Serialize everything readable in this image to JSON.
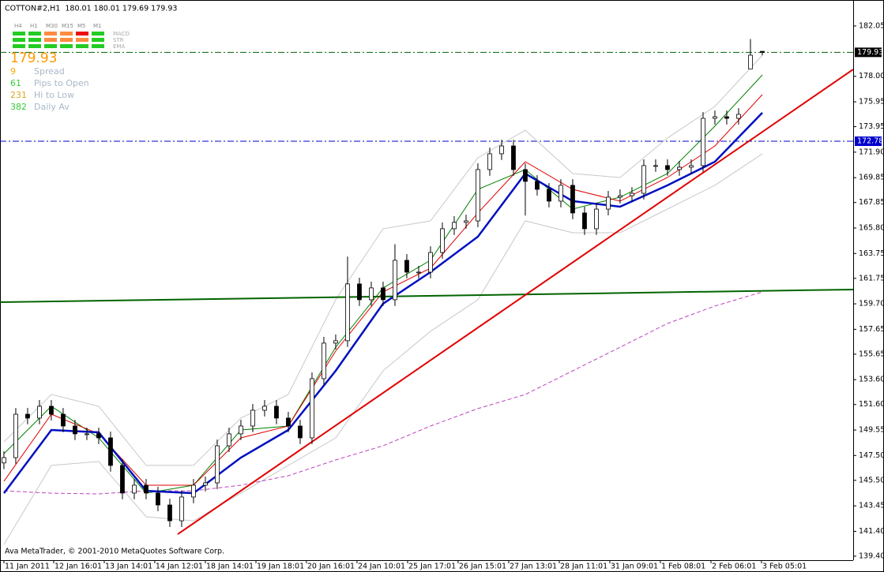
{
  "chart_data": {
    "type": "candlestick",
    "title": "COTTON#2,H1  180.01 180.01 179.69 179.93",
    "footer": "Ava MetaTrader, © 2001-2010 MetaQuotes Software Corp.",
    "open": [
      146.9,
      147.33,
      150.82,
      150.51,
      151.46,
      150.82,
      149.87,
      149.24,
      149.24,
      148.92,
      146.7,
      144.48,
      145.11,
      144.48,
      143.52,
      142.25,
      144.16,
      145.11,
      145.3,
      148.28,
      149.24,
      149.87,
      151.14,
      151.46,
      150.51,
      149.87,
      148.92,
      153.68,
      156.54,
      156.73,
      161.3,
      160.03,
      160.98,
      160.03,
      163.2,
      162.25,
      162.25,
      163.83,
      165.74,
      166.25,
      166.37,
      170.5,
      171.77,
      172.4,
      170.5,
      169.55,
      168.91,
      167.96,
      169.23,
      167.01,
      165.74,
      167.32,
      168.28,
      168.4,
      168.59,
      170.82,
      170.82,
      170.5,
      170.69,
      170.82,
      174.62,
      174.75,
      174.62,
      178.6,
      180.01
    ],
    "high": [
      147.83,
      151.32,
      151.32,
      151.96,
      151.96,
      151.32,
      150.37,
      149.74,
      149.74,
      149.42,
      147.2,
      145.61,
      145.61,
      144.98,
      144.02,
      144.66,
      145.61,
      145.8,
      148.78,
      149.74,
      150.37,
      151.64,
      151.96,
      151.96,
      151.01,
      150.37,
      154.18,
      157.04,
      157.23,
      163.5,
      161.8,
      161.48,
      161.48,
      164.5,
      163.7,
      162.75,
      164.33,
      166.24,
      166.75,
      166.87,
      171.0,
      172.27,
      172.9,
      172.9,
      171.0,
      170.05,
      169.41,
      169.73,
      169.73,
      167.51,
      167.82,
      168.78,
      168.9,
      169.09,
      171.32,
      171.32,
      171.32,
      171.19,
      171.32,
      175.12,
      175.25,
      175.25,
      175.44,
      181.0,
      180.01
    ],
    "low": [
      146.4,
      146.83,
      150.01,
      150.01,
      150.32,
      149.37,
      148.74,
      148.74,
      148.42,
      146.2,
      143.98,
      143.98,
      143.98,
      143.02,
      141.75,
      141.75,
      143.66,
      144.61,
      144.8,
      147.78,
      148.74,
      149.37,
      150.64,
      150.01,
      149.37,
      148.42,
      148.42,
      153.18,
      156.04,
      156.23,
      159.53,
      159.53,
      159.53,
      159.53,
      161.75,
      161.75,
      161.75,
      163.33,
      165.24,
      165.75,
      165.87,
      170.0,
      171.27,
      170.0,
      166.8,
      168.41,
      167.46,
      167.46,
      166.51,
      165.24,
      165.24,
      166.82,
      167.78,
      167.9,
      168.09,
      170.32,
      170.0,
      170.0,
      170.19,
      170.32,
      174.12,
      174.12,
      174.12,
      178.6,
      179.69
    ],
    "close": [
      147.33,
      150.82,
      150.51,
      151.46,
      150.82,
      149.87,
      149.24,
      149.24,
      148.92,
      146.7,
      144.48,
      145.11,
      144.48,
      143.52,
      142.25,
      144.16,
      145.11,
      145.3,
      148.28,
      149.24,
      149.87,
      151.14,
      151.46,
      150.51,
      149.87,
      148.92,
      153.68,
      156.54,
      156.73,
      161.3,
      160.03,
      160.98,
      160.03,
      163.2,
      162.25,
      162.25,
      163.83,
      165.74,
      166.25,
      166.37,
      170.5,
      171.77,
      172.4,
      170.5,
      169.55,
      168.91,
      167.96,
      169.23,
      167.01,
      165.74,
      167.32,
      168.28,
      168.4,
      168.59,
      170.82,
      170.82,
      170.5,
      170.69,
      170.82,
      174.62,
      174.75,
      174.62,
      174.94,
      179.7,
      179.93
    ],
    "up_color": "#ffffff",
    "down_color": "#000000",
    "candle_edge": "#000000",
    "indicator_x": [
      0,
      4,
      8,
      12,
      16,
      20,
      24,
      28,
      32,
      36,
      40,
      44,
      48,
      52,
      56,
      60,
      64
    ],
    "series": [
      {
        "color": "#c8c8c8",
        "dash": false,
        "width": 1,
        "values": [
          148.6,
          152.41,
          151.46,
          146.7,
          146.7,
          150.51,
          152.41,
          160.03,
          165.74,
          166.37,
          171.45,
          173.67,
          170.18,
          169.86,
          173.04,
          175.58,
          179.7
        ]
      },
      {
        "color": "#c8c8c8",
        "dash": false,
        "width": 1,
        "values": [
          140.35,
          146.7,
          147.01,
          142.57,
          142.25,
          144.47,
          146.7,
          148.92,
          154.31,
          157.49,
          160.03,
          166.37,
          165.42,
          165.42,
          167.32,
          169.23,
          171.77
        ]
      },
      {
        "color": "#bb44bb",
        "dash": true,
        "width": 1,
        "values": [
          144.66,
          144.47,
          144.41,
          144.66,
          144.66,
          145.11,
          145.87,
          147.14,
          148.28,
          149.87,
          151.27,
          152.41,
          154.31,
          156.21,
          158.12,
          159.52,
          160.66
        ]
      },
      {
        "color": "#008000",
        "dash": false,
        "width": 1,
        "values": [
          147.65,
          151.46,
          148.92,
          144.47,
          145.11,
          149.55,
          149.87,
          156.21,
          160.98,
          163.2,
          168.91,
          170.5,
          167.32,
          168.28,
          170.18,
          173.99,
          178.11
        ]
      },
      {
        "color": "#e00000",
        "dash": false,
        "width": 1,
        "values": [
          145.43,
          150.82,
          149.24,
          145.11,
          145.11,
          148.92,
          149.87,
          155.9,
          160.66,
          162.56,
          167.01,
          171.13,
          168.91,
          167.96,
          169.86,
          172.4,
          176.53
        ]
      },
      {
        "color": "#0010c0",
        "dash": false,
        "width": 2.5,
        "values": [
          144.47,
          149.55,
          149.36,
          144.66,
          144.47,
          147.33,
          149.55,
          154.31,
          159.71,
          162.25,
          165.1,
          170.18,
          167.96,
          167.51,
          169.23,
          171.13,
          175.07
        ]
      }
    ],
    "trendlines": [
      {
        "color": "#006400",
        "x": [
          -0.33,
          71.67
        ],
        "y": [
          159.83,
          160.85
        ]
      },
      {
        "color": "#e00000",
        "x": [
          14.67,
          71.67
        ],
        "y": [
          141.17,
          178.56
        ]
      }
    ],
    "levels": [
      {
        "value": 179.93,
        "color": "#006400",
        "label_bg": "#000000"
      },
      {
        "value": 172.78,
        "color": "#0000cc",
        "label_bg": "#0000cc"
      }
    ],
    "xlim": [
      -0.33,
      71.67
    ],
    "xticks": [
      {
        "value": 0,
        "label": "11 Jan 2011"
      },
      {
        "value": 4.2,
        "label": "12 Jan 16:01"
      },
      {
        "value": 8.47,
        "label": "13 Jan 14:01"
      },
      {
        "value": 12.73,
        "label": "14 Jan 12:01"
      },
      {
        "value": 17,
        "label": "18 Jan 14:01"
      },
      {
        "value": 21.27,
        "label": "19 Jan 18:01"
      },
      {
        "value": 25.53,
        "label": "20 Jan 16:01"
      },
      {
        "value": 29.8,
        "label": "24 Jan 10:01"
      },
      {
        "value": 34.07,
        "label": "25 Jan 17:01"
      },
      {
        "value": 38.33,
        "label": "26 Jan 15:01"
      },
      {
        "value": 42.6,
        "label": "27 Jan 13:01"
      },
      {
        "value": 46.87,
        "label": "28 Jan 11:01"
      },
      {
        "value": 51.13,
        "label": "31 Jan 09:01"
      },
      {
        "value": 55.4,
        "label": "1 Feb 08:01"
      },
      {
        "value": 59.67,
        "label": "2 Feb 06:01"
      },
      {
        "value": 63.93,
        "label": "3 Feb 05:01"
      }
    ],
    "ylim": [
      139.08,
      184.14
    ],
    "yticks": [
      182.05,
      {
        "value": 178,
        "label": "178.00"
      },
      175.95,
      173.95,
      {
        "value": 171.9,
        "label": "171.90"
      },
      169.85,
      167.85,
      {
        "value": 165.8,
        "label": "165.80"
      },
      163.75,
      161.75,
      {
        "value": 159.7,
        "label": "159.70"
      },
      157.65,
      155.65,
      {
        "value": 153.6,
        "label": "153.60"
      },
      {
        "value": 151.6,
        "label": "151.60"
      },
      149.55,
      {
        "value": 147.5,
        "label": "147.50"
      },
      {
        "value": 145.5,
        "label": "145.50"
      },
      143.45,
      {
        "value": 141.4,
        "label": "141.40"
      },
      {
        "value": 139.4,
        "label": "139.40"
      }
    ],
    "panel": {
      "timeframes": [
        "H4",
        "H1",
        "M30",
        "M15",
        "M5",
        "M1"
      ],
      "indicators": [
        "MACD",
        "STR",
        "EMA"
      ],
      "signal_colors": [
        [
          "#22cc22",
          "#22cc22",
          "#ff8c40",
          "#ff8c40",
          "#ee1111",
          "#22cc22"
        ],
        [
          "#22cc22",
          "#22cc22",
          "#ff8c40",
          "#ff8c40",
          "#ff8c40",
          "#22cc22"
        ],
        [
          "#22cc22",
          "#22cc22",
          "#22cc22",
          "#22cc22",
          "#22cc22",
          "#22cc22"
        ]
      ],
      "price": 179.93,
      "price_color": "#ff9900",
      "stats": [
        {
          "value": 9,
          "label": "Spread",
          "color": "#ffa500"
        },
        {
          "value": 61,
          "label": "Pips to Open",
          "color": "#33cc33"
        },
        {
          "value": 231,
          "label": "Hi to Low",
          "color": "#daa520"
        },
        {
          "value": 382,
          "label": "Daily Av",
          "color": "#33cc33"
        }
      ]
    }
  }
}
